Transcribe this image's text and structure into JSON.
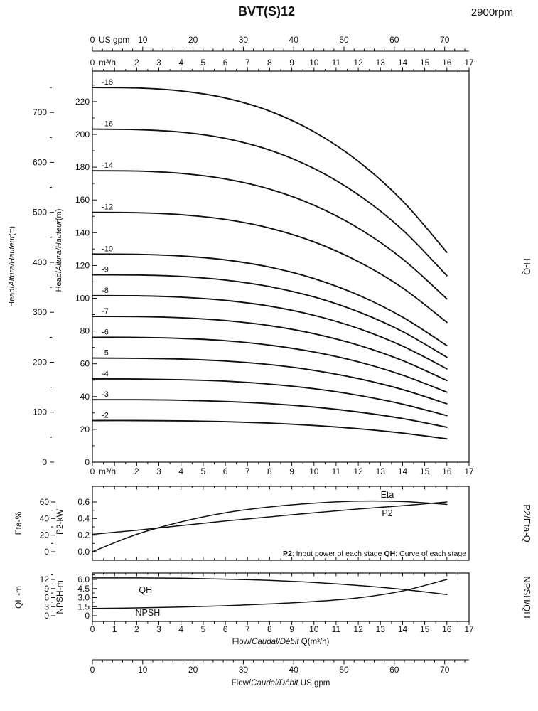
{
  "header": {
    "title": "BVT(S)12",
    "rpm": "2900rpm"
  },
  "labels": {
    "hq": "H-Q",
    "p2_eta_q": "P2/Eta-Q",
    "npsh_qh": "NPSH/QH",
    "eta_pct": "Eta-%",
    "p2_kw": "P2-kW",
    "qh_m": "QH-m",
    "npsh_m": "NPSH-m",
    "head_ft_parts": [
      {
        "t": "Head/"
      },
      {
        "t": "Altura/Hauteur",
        "i": true
      },
      {
        "t": "(ft)"
      }
    ],
    "head_m_parts": [
      {
        "t": "Head/"
      },
      {
        "t": "Altura/Hauteur",
        "i": true
      },
      {
        "t": "(m)"
      }
    ],
    "flow_mh_parts": [
      {
        "t": "Flow/"
      },
      {
        "t": "Caudal/Débit",
        "i": true
      },
      {
        "t": " Q(m³/h)"
      }
    ],
    "flow_gpm_parts": [
      {
        "t": "Flow/"
      },
      {
        "t": "Caudal/Débit",
        "i": true
      },
      {
        "t": "  US gpm"
      }
    ],
    "note_parts": [
      {
        "t": "P2",
        "b": true
      },
      {
        "t": ": Input power of each stage "
      },
      {
        "t": "QH",
        "b": true
      },
      {
        "t": ": Curve of each stage"
      }
    ]
  },
  "axes": {
    "gpm": {
      "zero_label": "0",
      "unit": "US gpm",
      "ticks": [
        10,
        20,
        30,
        40,
        50,
        60,
        70
      ],
      "minor_step": 2,
      "to_m3h": 0.22712
    },
    "m3h": {
      "zero_label": "0",
      "unit": "m³/h",
      "ticks": [
        2,
        3,
        4,
        5,
        6,
        7,
        8,
        9,
        10,
        11,
        12,
        13,
        14,
        15,
        16,
        17
      ]
    },
    "m3h_all": [
      0,
      1,
      2,
      3,
      4,
      5,
      6,
      7,
      8,
      9,
      10,
      11,
      12,
      13,
      14,
      15,
      16,
      17
    ],
    "head_m_ticks": [
      0,
      20,
      40,
      60,
      80,
      100,
      120,
      140,
      160,
      180,
      200,
      220
    ],
    "head_ft_ticks": [
      0,
      100,
      200,
      300,
      400,
      500,
      600,
      700
    ],
    "eta_ticks": [
      0,
      20,
      40,
      60
    ],
    "p2_ticks": [
      "0.0",
      "0.2",
      "0.4",
      "0.6"
    ],
    "qh_ticks": [
      0,
      3,
      6,
      9,
      12
    ],
    "npsh_ticks": [
      "0",
      "1.5",
      "3.0",
      "4.5",
      "6.0"
    ]
  },
  "chart_data": [
    {
      "id": "hq",
      "type": "line",
      "title": "H-Q",
      "xlabel": "Flow Q (m³/h)",
      "ylabel": "Head (m)",
      "ylabel_outer": "Head (ft)",
      "xlim": [
        0,
        17
      ],
      "ylim": [
        0,
        240
      ],
      "grid": false,
      "x": [
        0,
        2,
        4,
        6,
        8,
        10,
        12,
        14,
        16
      ],
      "series": [
        {
          "name": "-18",
          "values": [
            228.6,
            228.3,
            226.5,
            222.2,
            214.2,
            201.6,
            183.6,
            159.4,
            128.0
          ]
        },
        {
          "name": "-16",
          "values": [
            203.2,
            202.9,
            201.4,
            197.5,
            190.4,
            179.2,
            163.2,
            141.7,
            113.8
          ]
        },
        {
          "name": "-14",
          "values": [
            177.8,
            177.6,
            176.2,
            172.8,
            166.6,
            156.8,
            142.8,
            124.0,
            99.6
          ]
        },
        {
          "name": "-12",
          "values": [
            152.4,
            152.2,
            151.0,
            148.1,
            142.8,
            134.4,
            122.4,
            106.3,
            85.3
          ]
        },
        {
          "name": "-10",
          "values": [
            127.0,
            126.8,
            125.8,
            123.4,
            119.0,
            112.0,
            102.0,
            88.5,
            71.1
          ]
        },
        {
          "name": "-9",
          "values": [
            114.3,
            114.2,
            113.3,
            111.1,
            107.1,
            100.8,
            91.8,
            79.7,
            64.0
          ]
        },
        {
          "name": "-8",
          "values": [
            101.6,
            101.5,
            100.7,
            98.7,
            95.2,
            89.6,
            81.6,
            70.8,
            56.9
          ]
        },
        {
          "name": "-7",
          "values": [
            88.9,
            88.8,
            88.1,
            86.4,
            83.3,
            78.4,
            71.4,
            62.0,
            49.8
          ]
        },
        {
          "name": "-6",
          "values": [
            76.2,
            76.1,
            75.5,
            74.1,
            71.4,
            67.2,
            61.2,
            53.1,
            42.7
          ]
        },
        {
          "name": "-5",
          "values": [
            63.5,
            63.4,
            62.9,
            61.7,
            59.5,
            56.0,
            51.0,
            44.3,
            35.6
          ]
        },
        {
          "name": "-4",
          "values": [
            50.8,
            50.7,
            50.3,
            49.4,
            47.6,
            44.8,
            40.8,
            35.4,
            28.4
          ]
        },
        {
          "name": "-3",
          "values": [
            38.1,
            38.1,
            37.8,
            37.0,
            35.7,
            33.6,
            30.6,
            26.6,
            21.3
          ]
        },
        {
          "name": "-2",
          "values": [
            25.4,
            25.4,
            25.2,
            24.7,
            23.8,
            22.4,
            20.4,
            17.7,
            14.2
          ]
        }
      ]
    },
    {
      "id": "p2eta",
      "type": "line",
      "title": "P2/Eta-Q",
      "xlim": [
        0,
        17
      ],
      "eta_lim": [
        0,
        66
      ],
      "p2_lim": [
        0,
        0.66
      ],
      "x": [
        0,
        2,
        4,
        6,
        8,
        10,
        12,
        14,
        16
      ],
      "series": [
        {
          "name": "Eta",
          "axis": "eta",
          "values": [
            0,
            21,
            36,
            47,
            54,
            58.5,
            61,
            60.5,
            57
          ]
        },
        {
          "name": "P2",
          "axis": "p2",
          "values": [
            0.21,
            0.26,
            0.315,
            0.37,
            0.42,
            0.47,
            0.515,
            0.555,
            0.6
          ]
        }
      ]
    },
    {
      "id": "npshqh",
      "type": "line",
      "title": "NPSH/QH",
      "xlim": [
        0,
        17
      ],
      "qh_lim": [
        0,
        13.5
      ],
      "npsh_lim": [
        0,
        6.75
      ],
      "x": [
        0,
        2,
        4,
        6,
        8,
        10,
        12,
        14,
        16
      ],
      "series": [
        {
          "name": "QH",
          "axis": "qh",
          "values": [
            12.5,
            12.5,
            12.4,
            12.1,
            11.7,
            11.0,
            10.0,
            8.7,
            7.0
          ]
        },
        {
          "name": "NPSH",
          "axis": "npsh",
          "values": [
            1.2,
            1.3,
            1.45,
            1.65,
            1.95,
            2.35,
            2.95,
            4.1,
            6.0
          ]
        }
      ]
    }
  ]
}
